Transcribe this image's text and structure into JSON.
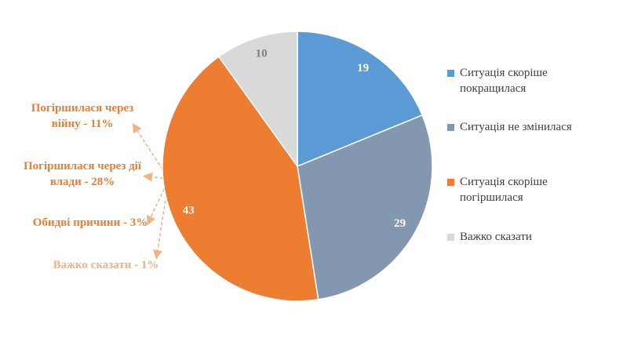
{
  "chart_data": {
    "type": "pie",
    "categories": [
      "Ситуація скоріше покращилася",
      "Ситуація не змінилася",
      "Ситуація скоріше погіршилася",
      "Важко сказати"
    ],
    "values": [
      19,
      29,
      43,
      10
    ],
    "colors": [
      "#5b9bd5",
      "#8497b0",
      "#ed7d31",
      "#d9d9d9"
    ],
    "annotations": [
      "Погіршилася через війну - 11%",
      "Погіршилася через дії влади - 28%",
      "Обидві причини - 3%",
      "Важко сказати - 1%"
    ]
  }
}
